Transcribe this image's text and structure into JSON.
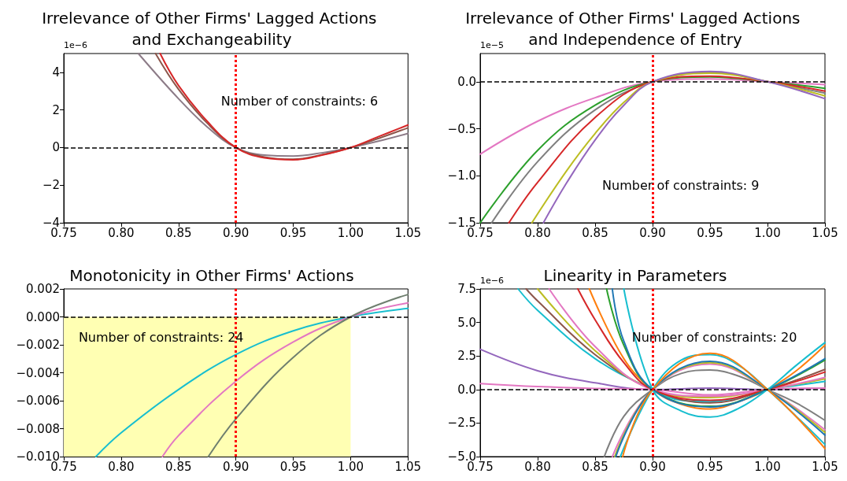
{
  "chart_data": [
    {
      "type": "line",
      "title": "Irrelevance of Other Firms' Lagged Actions and Exchangeability",
      "annotations": [
        "Number of constraints: 6",
        "1e−6"
      ],
      "xlim": [
        0.75,
        1.05
      ],
      "xticks": [
        {
          "value": 0.75,
          "label": "0.75"
        },
        {
          "value": 0.8,
          "label": "0.80"
        },
        {
          "value": 0.85,
          "label": "0.85"
        },
        {
          "value": 0.9,
          "label": "0.90"
        },
        {
          "value": 0.95,
          "label": "0.95"
        },
        {
          "value": 1.0,
          "label": "1.00"
        },
        {
          "value": 1.05,
          "label": "1.05"
        }
      ],
      "ylim": [
        -4,
        5
      ],
      "yticks": [
        {
          "value": -4,
          "label": "−4"
        },
        {
          "value": -2,
          "label": "−2"
        },
        0,
        2,
        4
      ],
      "marker": "none",
      "line_style": "solid",
      "ref_lines": [
        {
          "axis": "y",
          "value": 0,
          "color": "#000000",
          "line_style": "dashed"
        },
        {
          "axis": "x",
          "value": 0.9,
          "color": "#ff0000",
          "line_style": "dotted"
        }
      ],
      "series": [
        {
          "color": "#8c7b87",
          "x": [
            0.815,
            0.85,
            0.875,
            0.9,
            0.925,
            0.95,
            0.975,
            1.0,
            1.025,
            1.05
          ],
          "values": [
            5,
            2.6,
            1.1,
            0,
            -0.4,
            -0.45,
            -0.28,
            0,
            0.35,
            0.75
          ]
        },
        {
          "color": "#8c564b",
          "x": [
            0.83,
            0.85,
            0.875,
            0.9,
            0.925,
            0.95,
            0.975,
            1.0,
            1.025,
            1.05
          ],
          "values": [
            5,
            3.1,
            1.3,
            0,
            -0.5,
            -0.62,
            -0.38,
            0,
            0.5,
            1.05
          ]
        },
        {
          "color": "#d62728",
          "x": [
            0.834,
            0.85,
            0.875,
            0.9,
            0.925,
            0.95,
            0.975,
            1.0,
            1.025,
            1.05
          ],
          "values": [
            5,
            3.3,
            1.4,
            0,
            -0.55,
            -0.65,
            -0.4,
            0,
            0.6,
            1.2
          ]
        }
      ]
    },
    {
      "type": "line",
      "title": "Irrelevance of Other Firms' Lagged Actions and Independence of Entry",
      "annotations": [
        "Number of constraints: 9",
        "1e−5"
      ],
      "xlim": [
        0.75,
        1.05
      ],
      "xticks": [
        {
          "value": 0.75,
          "label": "0.75"
        },
        {
          "value": 0.8,
          "label": "0.80"
        },
        {
          "value": 0.85,
          "label": "0.85"
        },
        {
          "value": 0.9,
          "label": "0.90"
        },
        {
          "value": 0.95,
          "label": "0.95"
        },
        {
          "value": 1.0,
          "label": "1.00"
        },
        {
          "value": 1.05,
          "label": "1.05"
        }
      ],
      "ylim": [
        -1.5,
        0.3
      ],
      "yticks": [
        {
          "value": -1.5,
          "label": "−1.5"
        },
        {
          "value": -1,
          "label": "−1.0"
        },
        {
          "value": -0.5,
          "label": "−0.5"
        },
        {
          "value": 0,
          "label": "0.0"
        }
      ],
      "marker": "none",
      "line_style": "solid",
      "ref_lines": [
        {
          "axis": "y",
          "value": 0,
          "color": "#000000",
          "line_style": "dashed"
        },
        {
          "axis": "x",
          "value": 0.9,
          "color": "#ff0000",
          "line_style": "dotted"
        }
      ],
      "series": [
        {
          "color": "#e377c2",
          "x": [
            0.75,
            0.8,
            0.85,
            0.9,
            0.95,
            1.0,
            1.05
          ],
          "values": [
            -0.77,
            -0.42,
            -0.17,
            0,
            0.03,
            0,
            -0.03
          ]
        },
        {
          "color": "#2ca02c",
          "x": [
            0.75,
            0.8,
            0.85,
            0.9,
            0.95,
            1.0,
            1.05
          ],
          "values": [
            -1.5,
            -0.73,
            -0.25,
            0,
            0.05,
            0,
            -0.07
          ]
        },
        {
          "color": "#7f7f7f",
          "x": [
            0.76,
            0.8,
            0.85,
            0.9,
            0.95,
            1.0,
            1.05
          ],
          "values": [
            -1.5,
            -0.85,
            -0.3,
            0,
            0.1,
            0,
            -0.12
          ]
        },
        {
          "color": "#d62728",
          "x": [
            0.775,
            0.8,
            0.85,
            0.9,
            0.95,
            1.0,
            1.05
          ],
          "values": [
            -1.5,
            -1.07,
            -0.38,
            0,
            0.06,
            0,
            -0.1
          ]
        },
        {
          "color": "#bcbd22",
          "x": [
            0.795,
            0.825,
            0.85,
            0.875,
            0.9,
            0.95,
            1.0,
            1.05
          ],
          "values": [
            -1.5,
            -0.95,
            -0.55,
            -0.22,
            0,
            0.09,
            0,
            -0.15
          ]
        },
        {
          "color": "#9467bd",
          "x": [
            0.805,
            0.825,
            0.85,
            0.875,
            0.9,
            0.95,
            1.0,
            1.05
          ],
          "values": [
            -1.5,
            -1.08,
            -0.62,
            -0.25,
            0,
            0.11,
            0,
            -0.18
          ]
        }
      ]
    },
    {
      "type": "line",
      "title": "Monotonicity in Other Firms' Actions",
      "annotations": [
        "Number of constraints: 24"
      ],
      "xlim": [
        0.75,
        1.05
      ],
      "xticks": [
        {
          "value": 0.75,
          "label": "0.75"
        },
        {
          "value": 0.8,
          "label": "0.80"
        },
        {
          "value": 0.85,
          "label": "0.85"
        },
        {
          "value": 0.9,
          "label": "0.90"
        },
        {
          "value": 0.95,
          "label": "0.95"
        },
        {
          "value": 1.0,
          "label": "1.00"
        },
        {
          "value": 1.05,
          "label": "1.05"
        }
      ],
      "ylim": [
        -0.01,
        0.002
      ],
      "yticks": [
        {
          "value": -0.01,
          "label": "−0.010"
        },
        {
          "value": -0.008,
          "label": "−0.008"
        },
        {
          "value": -0.006,
          "label": "−0.006"
        },
        {
          "value": -0.004,
          "label": "−0.004"
        },
        {
          "value": -0.002,
          "label": "−0.002"
        },
        {
          "value": 0,
          "label": "0.000"
        },
        {
          "value": 0.002,
          "label": "0.002"
        }
      ],
      "marker": "none",
      "line_style": "solid",
      "bands": [
        {
          "axis": "x",
          "from": 0.75,
          "to": 1.0,
          "color": "#ffffb3"
        }
      ],
      "ref_lines": [
        {
          "axis": "y",
          "value": 0,
          "color": "#000000",
          "line_style": "dashed"
        },
        {
          "axis": "x",
          "value": 0.9,
          "color": "#ff0000",
          "line_style": "dotted"
        }
      ],
      "series": [
        {
          "color": "#17becf",
          "x": [
            0.778,
            0.8,
            0.85,
            0.9,
            0.95,
            1.0,
            1.05
          ],
          "values": [
            -0.01,
            -0.0083,
            -0.0052,
            -0.0027,
            -0.001,
            0,
            0.0006
          ]
        },
        {
          "color": "#e377c2",
          "x": [
            0.836,
            0.85,
            0.9,
            0.95,
            1.0,
            1.05
          ],
          "values": [
            -0.01,
            -0.0085,
            -0.0046,
            -0.0018,
            0,
            0.001
          ]
        },
        {
          "color": "#6f7f6f",
          "x": [
            0.876,
            0.9,
            0.95,
            1.0,
            1.05
          ],
          "values": [
            -0.01,
            -0.0073,
            -0.0029,
            0,
            0.0016
          ]
        }
      ]
    },
    {
      "type": "line",
      "title": "Linearity in Parameters",
      "annotations": [
        "Number of constraints: 20",
        "1e−6"
      ],
      "xlim": [
        0.75,
        1.05
      ],
      "xticks": [
        {
          "value": 0.75,
          "label": "0.75"
        },
        {
          "value": 0.8,
          "label": "0.80"
        },
        {
          "value": 0.85,
          "label": "0.85"
        },
        {
          "value": 0.9,
          "label": "0.90"
        },
        {
          "value": 0.95,
          "label": "0.95"
        },
        {
          "value": 1.0,
          "label": "1.00"
        },
        {
          "value": 1.05,
          "label": "1.05"
        }
      ],
      "ylim": [
        -5,
        7.5
      ],
      "yticks": [
        {
          "value": -5,
          "label": "−5.0"
        },
        {
          "value": -2.5,
          "label": "−2.5"
        },
        {
          "value": 0,
          "label": "0.0"
        },
        {
          "value": 2.5,
          "label": "2.5"
        },
        {
          "value": 5,
          "label": "5.0"
        },
        {
          "value": 7.5,
          "label": "7.5"
        }
      ],
      "marker": "none",
      "line_style": "solid",
      "ref_lines": [
        {
          "axis": "y",
          "value": 0,
          "color": "#000000",
          "line_style": "dashed"
        },
        {
          "axis": "x",
          "value": 0.9,
          "color": "#ff0000",
          "line_style": "dotted"
        }
      ],
      "series": [
        {
          "color": "#9467bd",
          "x": [
            0.75,
            0.8,
            0.85,
            0.9,
            0.95,
            1.0,
            1.05
          ],
          "values": [
            3.0,
            1.4,
            0.5,
            0,
            0.1,
            0,
            0.1
          ]
        },
        {
          "color": "#e377c2",
          "x": [
            0.75,
            0.8,
            0.85,
            0.9,
            0.95,
            1.0,
            1.05
          ],
          "values": [
            0.45,
            0.22,
            0.08,
            0,
            -0.4,
            0,
            0.1
          ]
        },
        {
          "color": "#17becf",
          "x": [
            0.783,
            0.8,
            0.85,
            0.9,
            0.925,
            0.95,
            0.975,
            1.0,
            1.025,
            1.05
          ],
          "values": [
            7.5,
            5.9,
            2.3,
            0,
            -0.8,
            -0.9,
            -0.6,
            0,
            0.3,
            0.6
          ]
        },
        {
          "color": "#8c564b",
          "x": [
            0.79,
            0.8,
            0.85,
            0.9,
            0.95,
            1.0,
            1.05
          ],
          "values": [
            7.5,
            6.6,
            2.6,
            0,
            -1.0,
            0,
            1.5
          ]
        },
        {
          "color": "#bcbd22",
          "x": [
            0.8,
            0.85,
            0.9,
            0.95,
            1.0,
            1.05
          ],
          "values": [
            7.5,
            2.9,
            0,
            -0.6,
            0,
            0.8
          ]
        },
        {
          "color": "#e377c2",
          "x": [
            0.81,
            0.85,
            0.9,
            0.95,
            1.0,
            1.05
          ],
          "values": [
            7.5,
            3.2,
            0,
            -0.5,
            0,
            0.9
          ]
        },
        {
          "color": "#d62728",
          "x": [
            0.835,
            0.85,
            0.875,
            0.9,
            0.95,
            1.0,
            1.05
          ],
          "values": [
            7.5,
            5.2,
            2.0,
            0,
            -0.8,
            0,
            1.3
          ]
        },
        {
          "color": "#ff7f0e",
          "x": [
            0.845,
            0.875,
            0.9,
            0.925,
            0.95,
            0.975,
            1.0,
            1.025,
            1.05
          ],
          "values": [
            7.5,
            2.3,
            0,
            -1.1,
            -1.45,
            -0.9,
            0,
            1.4,
            3.3
          ]
        },
        {
          "color": "#2ca02c",
          "x": [
            0.86,
            0.875,
            0.9,
            0.95,
            1.0,
            1.05
          ],
          "values": [
            7.5,
            3.3,
            0,
            -1.25,
            0,
            2.2
          ]
        },
        {
          "color": "#1f77b4",
          "x": [
            0.865,
            0.875,
            0.9,
            0.95,
            1.0,
            1.05
          ],
          "values": [
            7.5,
            3.6,
            0,
            -1.3,
            0,
            2.3
          ]
        },
        {
          "color": "#17becf",
          "x": [
            0.875,
            0.9,
            0.925,
            0.95,
            0.975,
            1.0,
            1.025,
            1.05
          ],
          "values": [
            7.5,
            0,
            -1.6,
            -2.05,
            -1.4,
            0,
            1.8,
            3.5
          ]
        },
        {
          "color": "#7f7f7f",
          "x": [
            0.858,
            0.875,
            0.9,
            0.925,
            0.95,
            0.975,
            1.0,
            1.025,
            1.05
          ],
          "values": [
            -5,
            -2.0,
            0,
            1.2,
            1.45,
            1.0,
            0,
            -1.0,
            -2.3
          ]
        },
        {
          "color": "#e377c2",
          "x": [
            0.865,
            0.9,
            0.95,
            1.0,
            1.05
          ],
          "values": [
            -5,
            0,
            1.9,
            0,
            -3.0
          ]
        },
        {
          "color": "#bcbd22",
          "x": [
            0.867,
            0.9,
            0.95,
            1.0,
            1.05
          ],
          "values": [
            -5,
            0,
            2.0,
            0,
            -3.2
          ]
        },
        {
          "color": "#1f77b4",
          "x": [
            0.868,
            0.9,
            0.95,
            1.0,
            1.05
          ],
          "values": [
            -5,
            0,
            2.1,
            0,
            -3.4
          ]
        },
        {
          "color": "#17becf",
          "x": [
            0.872,
            0.9,
            0.925,
            0.95,
            0.975,
            1.0,
            1.025,
            1.05
          ],
          "values": [
            -5,
            0,
            2.2,
            2.6,
            1.8,
            0,
            -2.0,
            -4.1
          ]
        },
        {
          "color": "#ff7f0e",
          "x": [
            0.874,
            0.9,
            0.95,
            1.0,
            1.05
          ],
          "values": [
            -5,
            0,
            2.7,
            0,
            -4.4
          ]
        }
      ]
    }
  ]
}
